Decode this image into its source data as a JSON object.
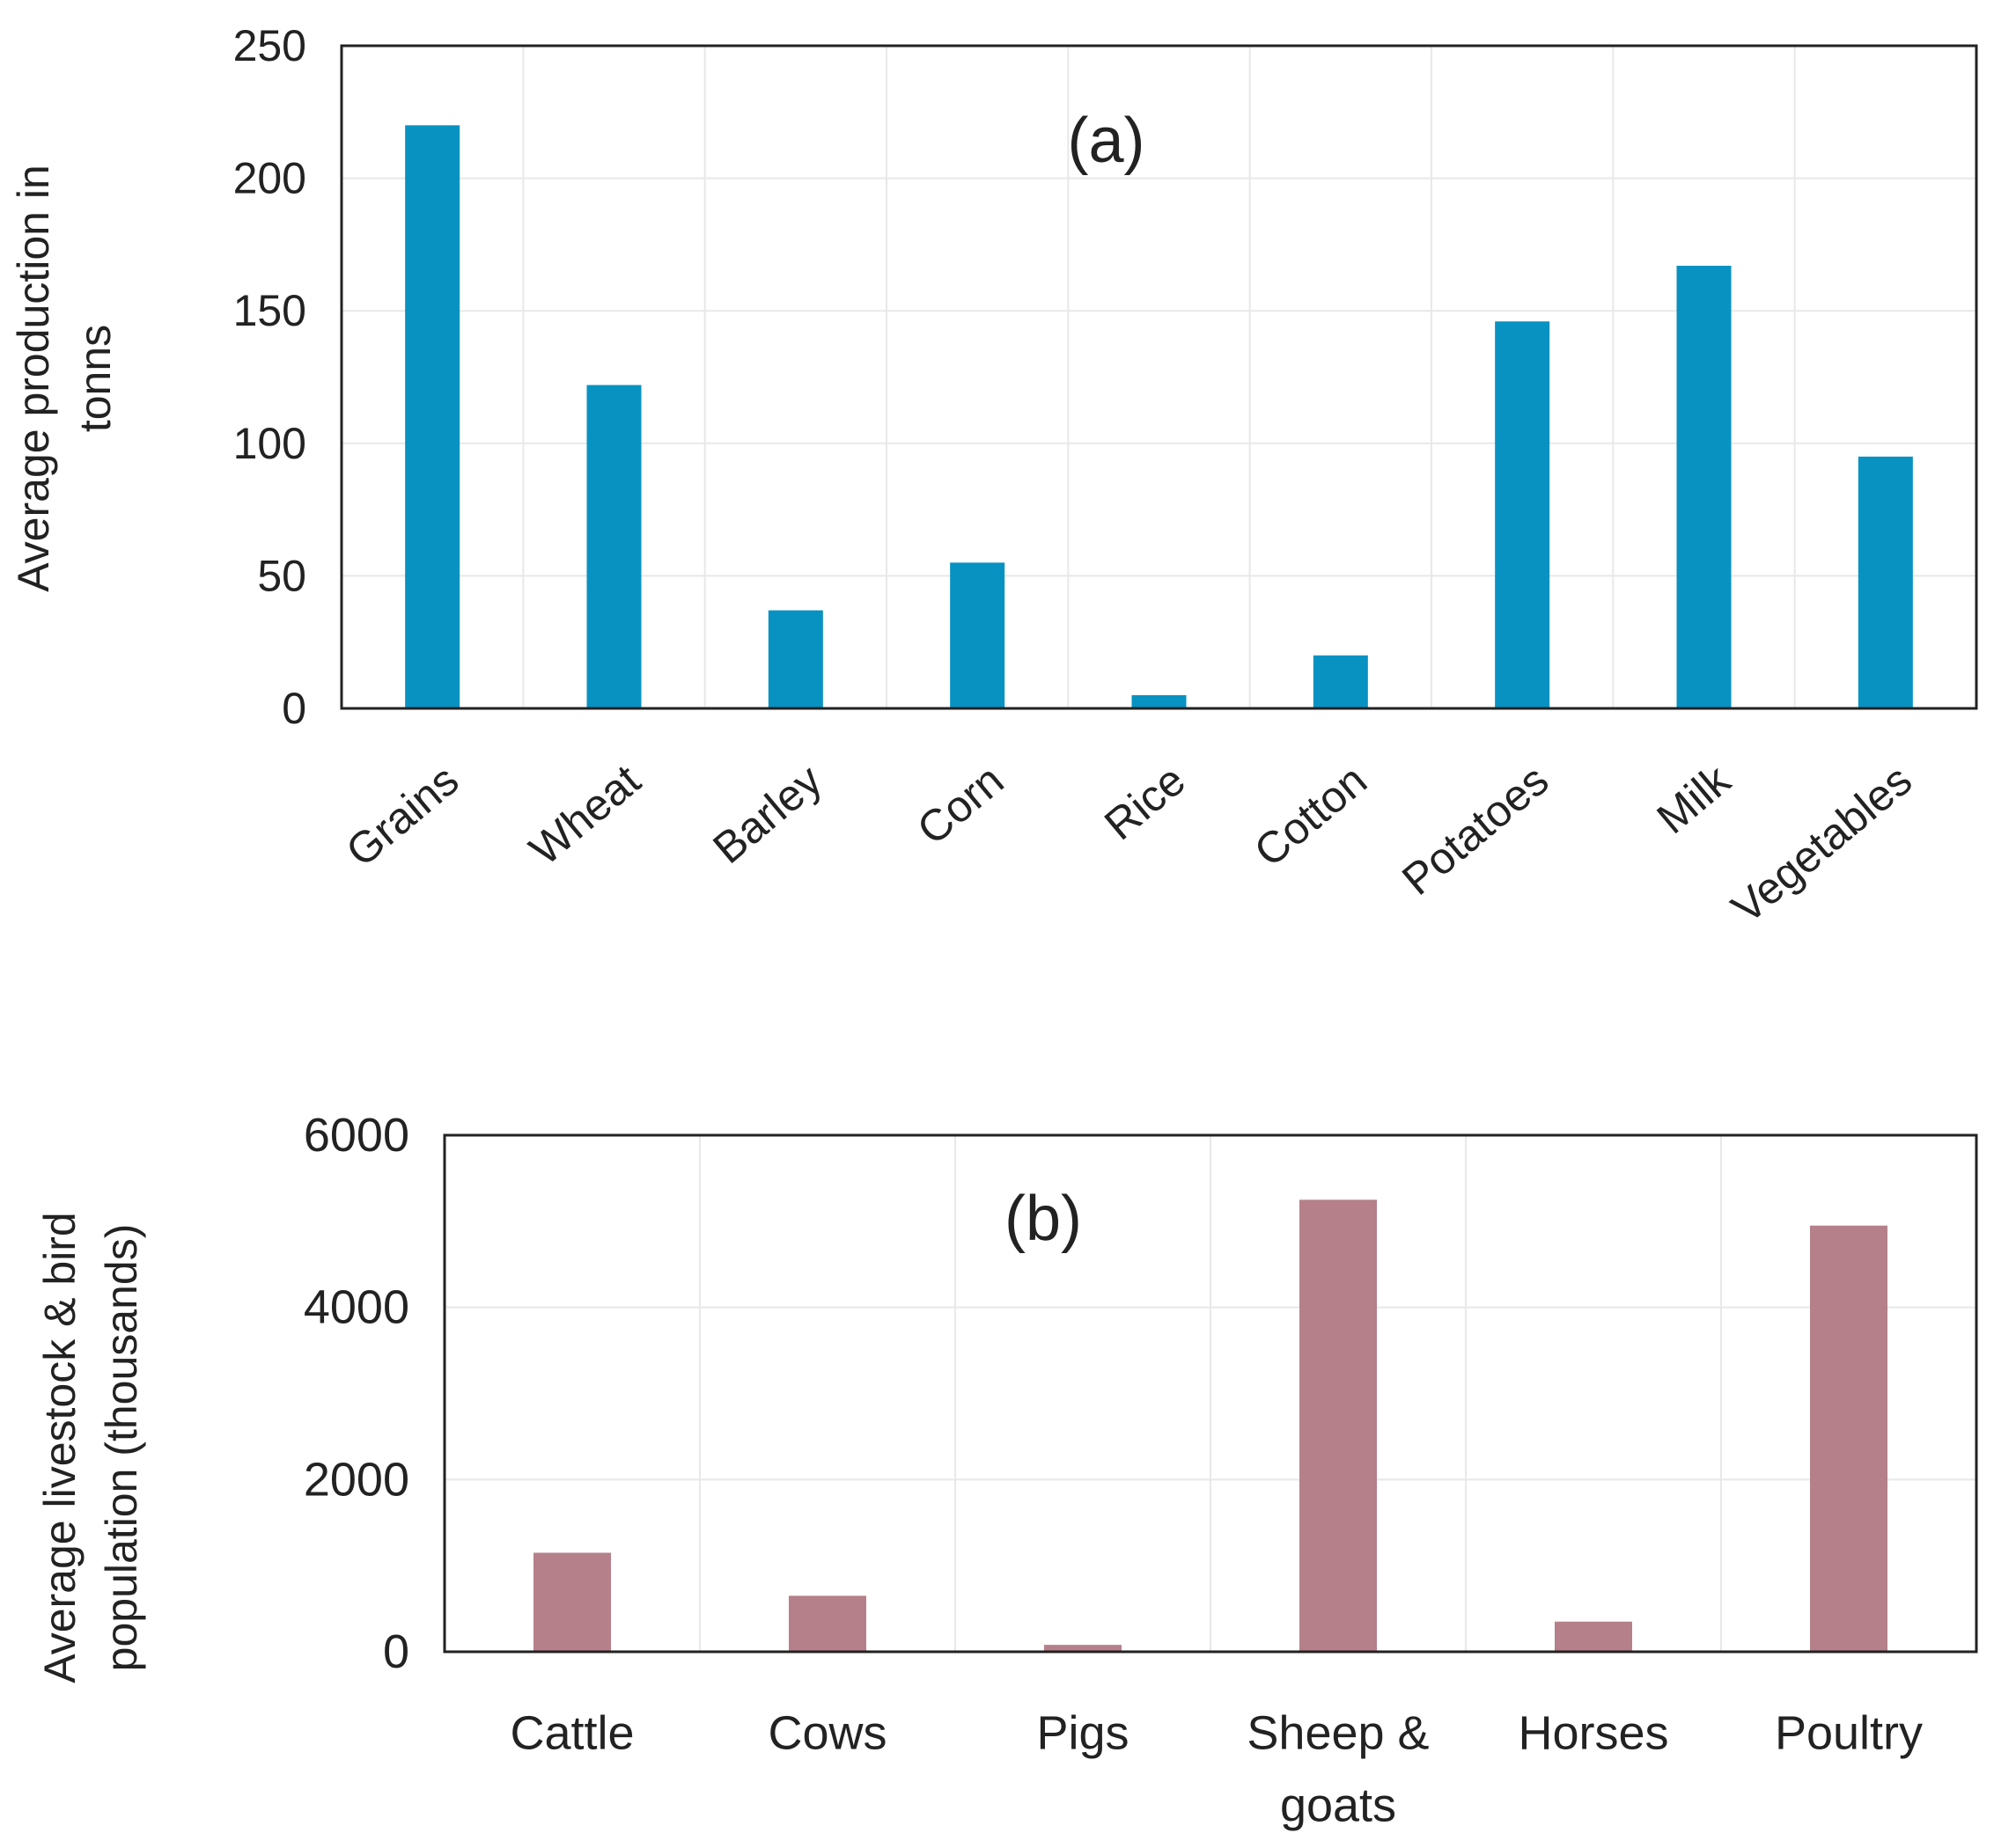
{
  "chart_data": [
    {
      "type": "bar",
      "panel_label": "(a)",
      "ylabel_lines": [
        "Average production in",
        "tonns"
      ],
      "xlabel": "",
      "categories": [
        "Grains",
        "Wheat",
        "Barley",
        "Corn",
        "Rice",
        "Cotton",
        "Potatoes",
        "Milk",
        "Vegetables"
      ],
      "values": [
        220,
        122,
        37,
        55,
        5,
        20,
        146,
        167,
        95
      ],
      "ylim": [
        0,
        250
      ],
      "yticks": [
        0,
        50,
        100,
        150,
        200,
        250
      ],
      "grid": true,
      "bar_color": "#0892c2",
      "rotate_xticks": true
    },
    {
      "type": "bar",
      "panel_label": "(b)",
      "ylabel_lines": [
        "Average livestock & bird",
        "population (thousands)"
      ],
      "xlabel": "",
      "categories": [
        "Cattle",
        "Cows",
        "Pigs",
        "Sheep & goats",
        "Horses",
        "Poultry"
      ],
      "category_lines": [
        [
          "Cattle"
        ],
        [
          "Cows"
        ],
        [
          "Pigs"
        ],
        [
          "Sheep &",
          "goats"
        ],
        [
          "Horses"
        ],
        [
          "Poultry"
        ]
      ],
      "values": [
        1150,
        650,
        80,
        5250,
        350,
        4950
      ],
      "ylim": [
        0,
        6000
      ],
      "yticks": [
        0,
        2000,
        4000,
        6000
      ],
      "grid": true,
      "bar_color": "#b5808a",
      "rotate_xticks": false
    }
  ]
}
